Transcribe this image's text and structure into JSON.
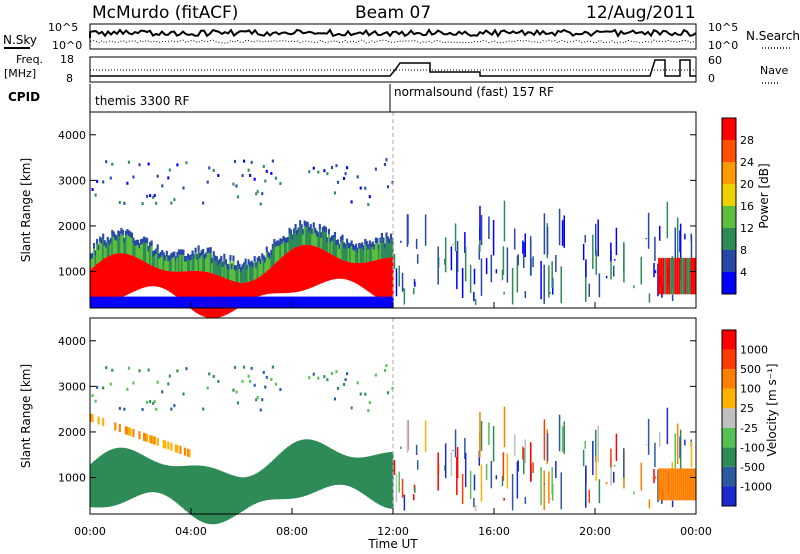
{
  "header": {
    "station": "McMurdo (fitACF)",
    "beam": "Beam 07",
    "date": "12/Aug/2011"
  },
  "top_panel": {
    "left_label": "N.Sky",
    "right_label": "N.Search",
    "left_ticks": [
      "10^5",
      "10^0"
    ],
    "right_ticks": [
      "10^5",
      "10^0"
    ]
  },
  "freq_panel": {
    "left_label_1": "Freq.",
    "left_label_2": "[MHz]",
    "right_label": "Nave",
    "left_ticks": [
      "18",
      "8"
    ],
    "right_ticks": [
      "60",
      "0"
    ]
  },
  "cpid": {
    "label": "CPID",
    "modes": [
      "themis 3300 RF",
      "normalsound (fast) 157 RF"
    ]
  },
  "x_axis": {
    "label": "Time UT",
    "ticks": [
      "00:00",
      "04:00",
      "08:00",
      "12:00",
      "16:00",
      "20:00",
      "00:00"
    ]
  },
  "colors": {
    "power": [
      "#0000ff",
      "#2848a8",
      "#2e8b57",
      "#5cbf3c",
      "#f0d000",
      "#ff9a00",
      "#ff5000",
      "#ff0000"
    ],
    "velocity": [
      "#ff0000",
      "#ff3a00",
      "#ff7f00",
      "#ffb200",
      "#c0c0c0",
      "#55c155",
      "#2e8b57",
      "#2c5aa0",
      "#1a2acd"
    ]
  },
  "chart_data": [
    {
      "type": "heatmap",
      "title": "",
      "ylabel": "Slant Range [km]",
      "xlabel": "",
      "y_ticks": [
        "1000",
        "2000",
        "3000",
        "4000"
      ],
      "ylim": [
        200,
        4500
      ],
      "xlim_hours": [
        0,
        24
      ],
      "colorbar": {
        "label": "Power [dB]",
        "ticks": [
          "4",
          "8",
          "12",
          "16",
          "20",
          "24",
          "28"
        ],
        "range": [
          0,
          32
        ]
      }
    },
    {
      "type": "heatmap",
      "title": "",
      "ylabel": "Slant Range [km]",
      "xlabel": "Time UT",
      "y_ticks": [
        "1000",
        "2000",
        "3000",
        "4000"
      ],
      "ylim": [
        200,
        4500
      ],
      "xlim_hours": [
        0,
        24
      ],
      "colorbar": {
        "label": "Velocity [m s⁻¹]",
        "ticks": [
          "1000",
          "500",
          "100",
          "25",
          "-25",
          "-100",
          "-500",
          "-1000"
        ]
      }
    }
  ]
}
